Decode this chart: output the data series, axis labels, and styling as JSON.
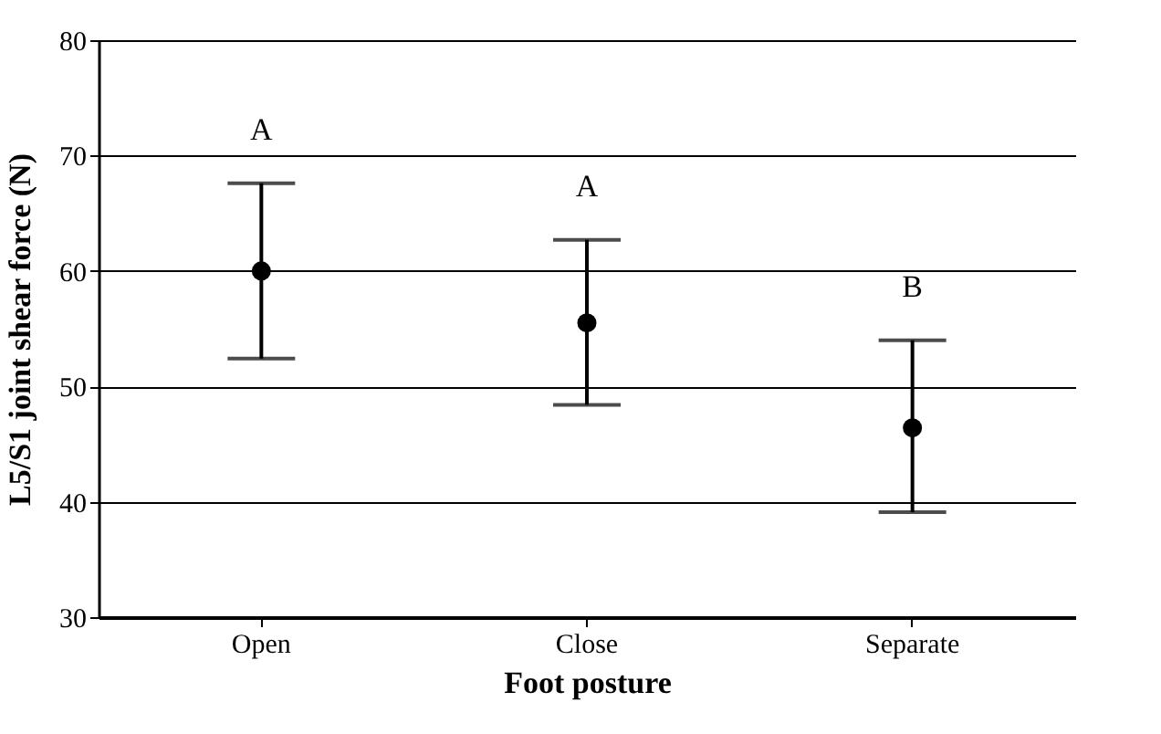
{
  "chart_data": {
    "type": "scatter",
    "xlabel": "Foot posture",
    "ylabel": "L5/S1 joint shear force (N)",
    "categories": [
      "Open",
      "Close",
      "Separate"
    ],
    "values": [
      60,
      55.5,
      46.4
    ],
    "errors": [
      [
        52.4,
        67.6
      ],
      [
        48.4,
        62.7
      ],
      [
        39.1,
        54.0
      ]
    ],
    "color": "#000000",
    "marker": "circle",
    "grid": "y",
    "ylim": [
      30,
      80
    ],
    "yticks": [
      30,
      40,
      50,
      60,
      70,
      80
    ],
    "annotations": [
      "A",
      "A",
      "B"
    ]
  }
}
